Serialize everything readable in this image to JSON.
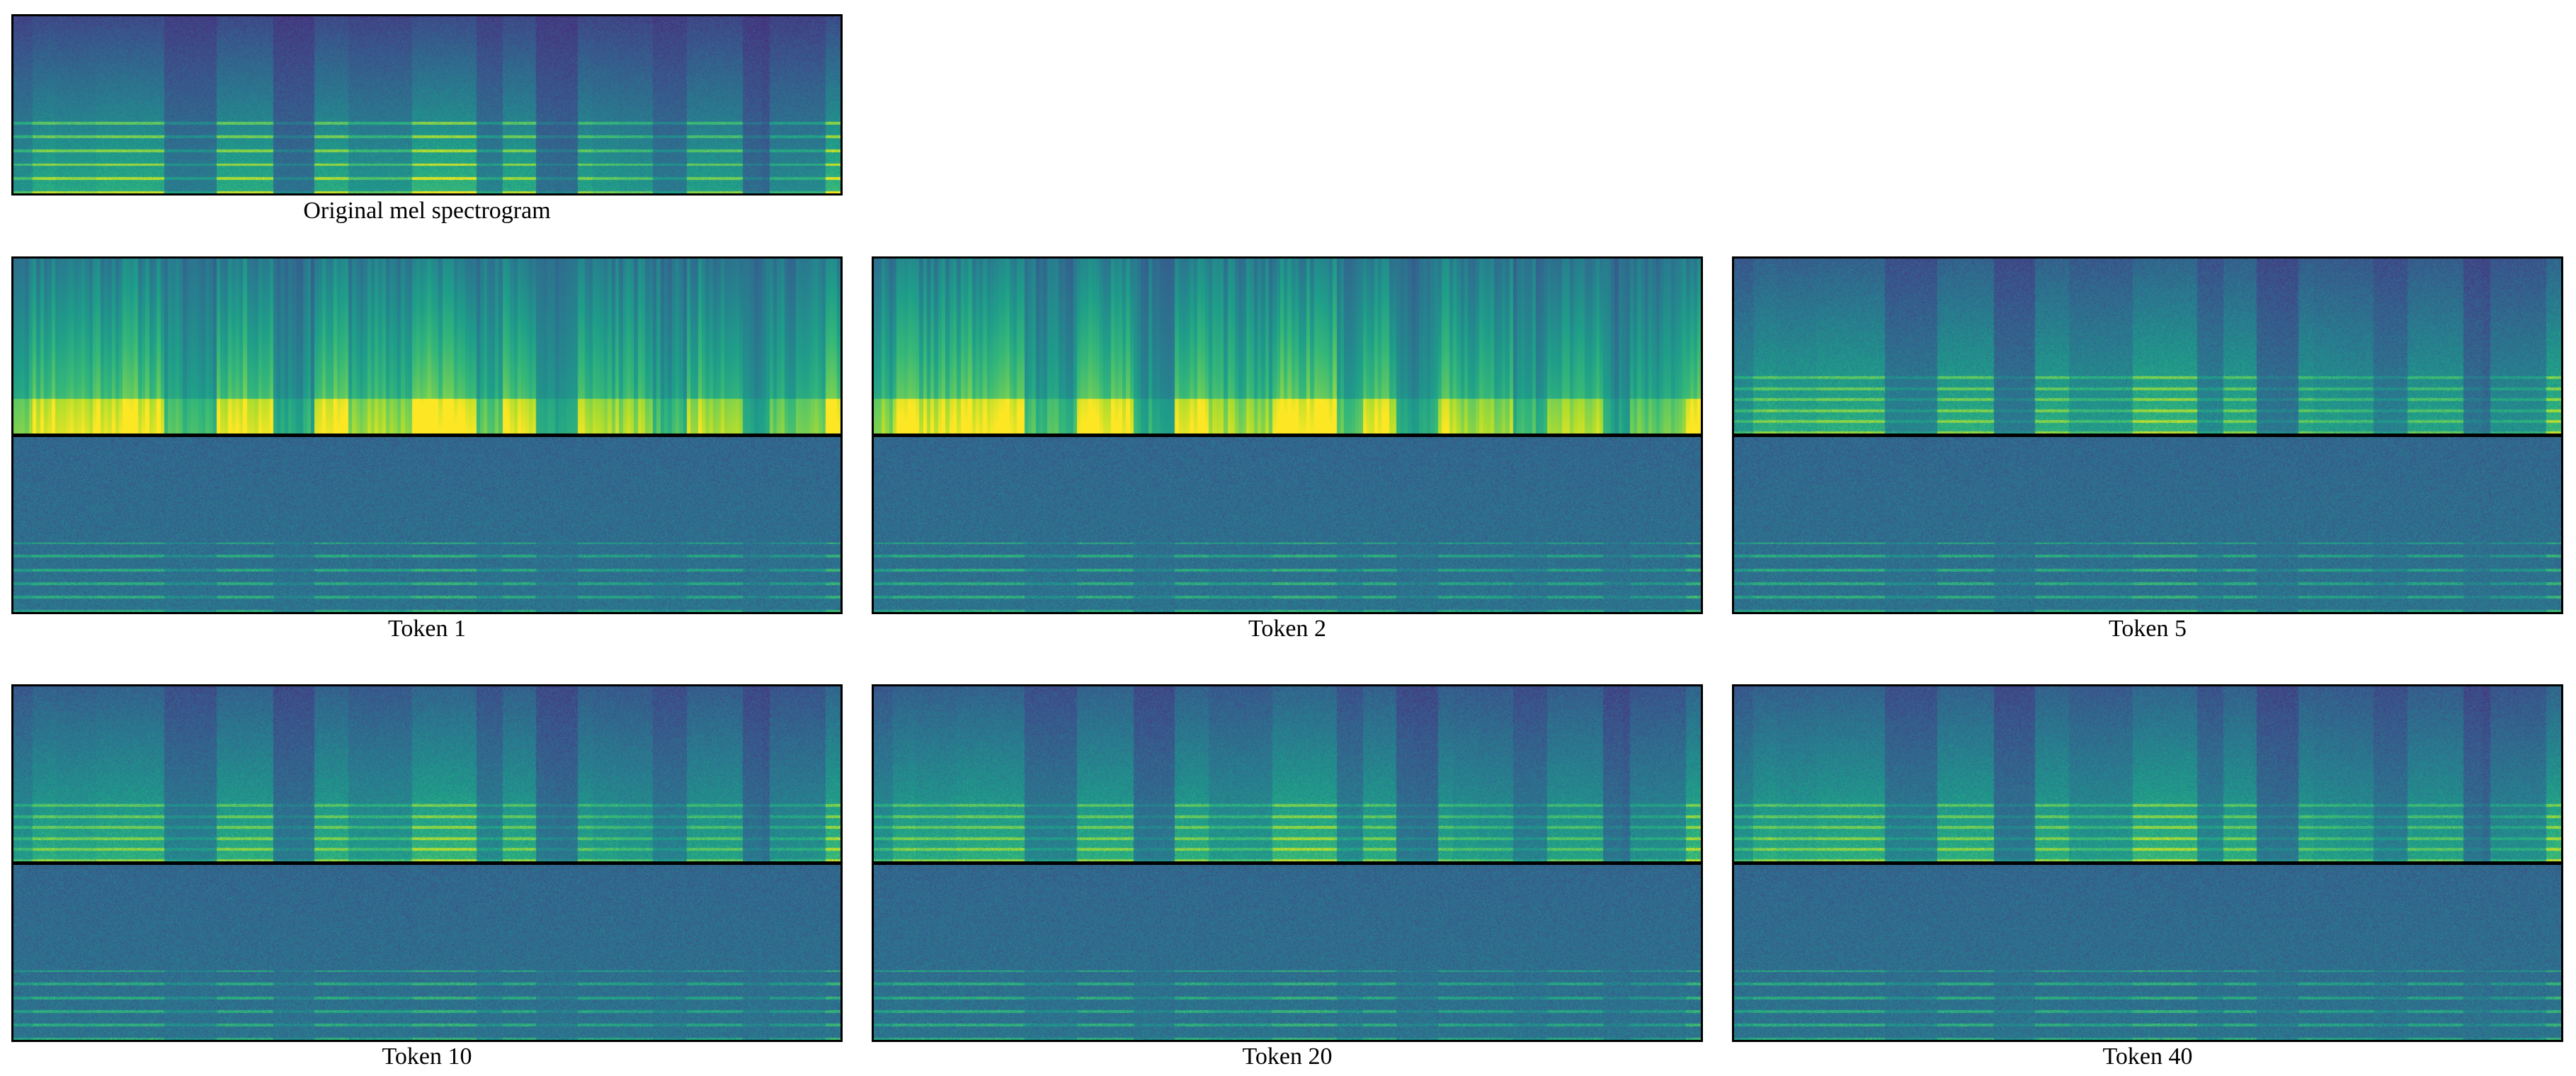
{
  "figure": {
    "original": {
      "caption": "Original mel spectrogram"
    },
    "panels": [
      {
        "caption": "Token 1"
      },
      {
        "caption": "Token 2"
      },
      {
        "caption": "Token 5"
      },
      {
        "caption": "Token 10"
      },
      {
        "caption": "Token 20"
      },
      {
        "caption": "Token 40"
      }
    ]
  }
}
